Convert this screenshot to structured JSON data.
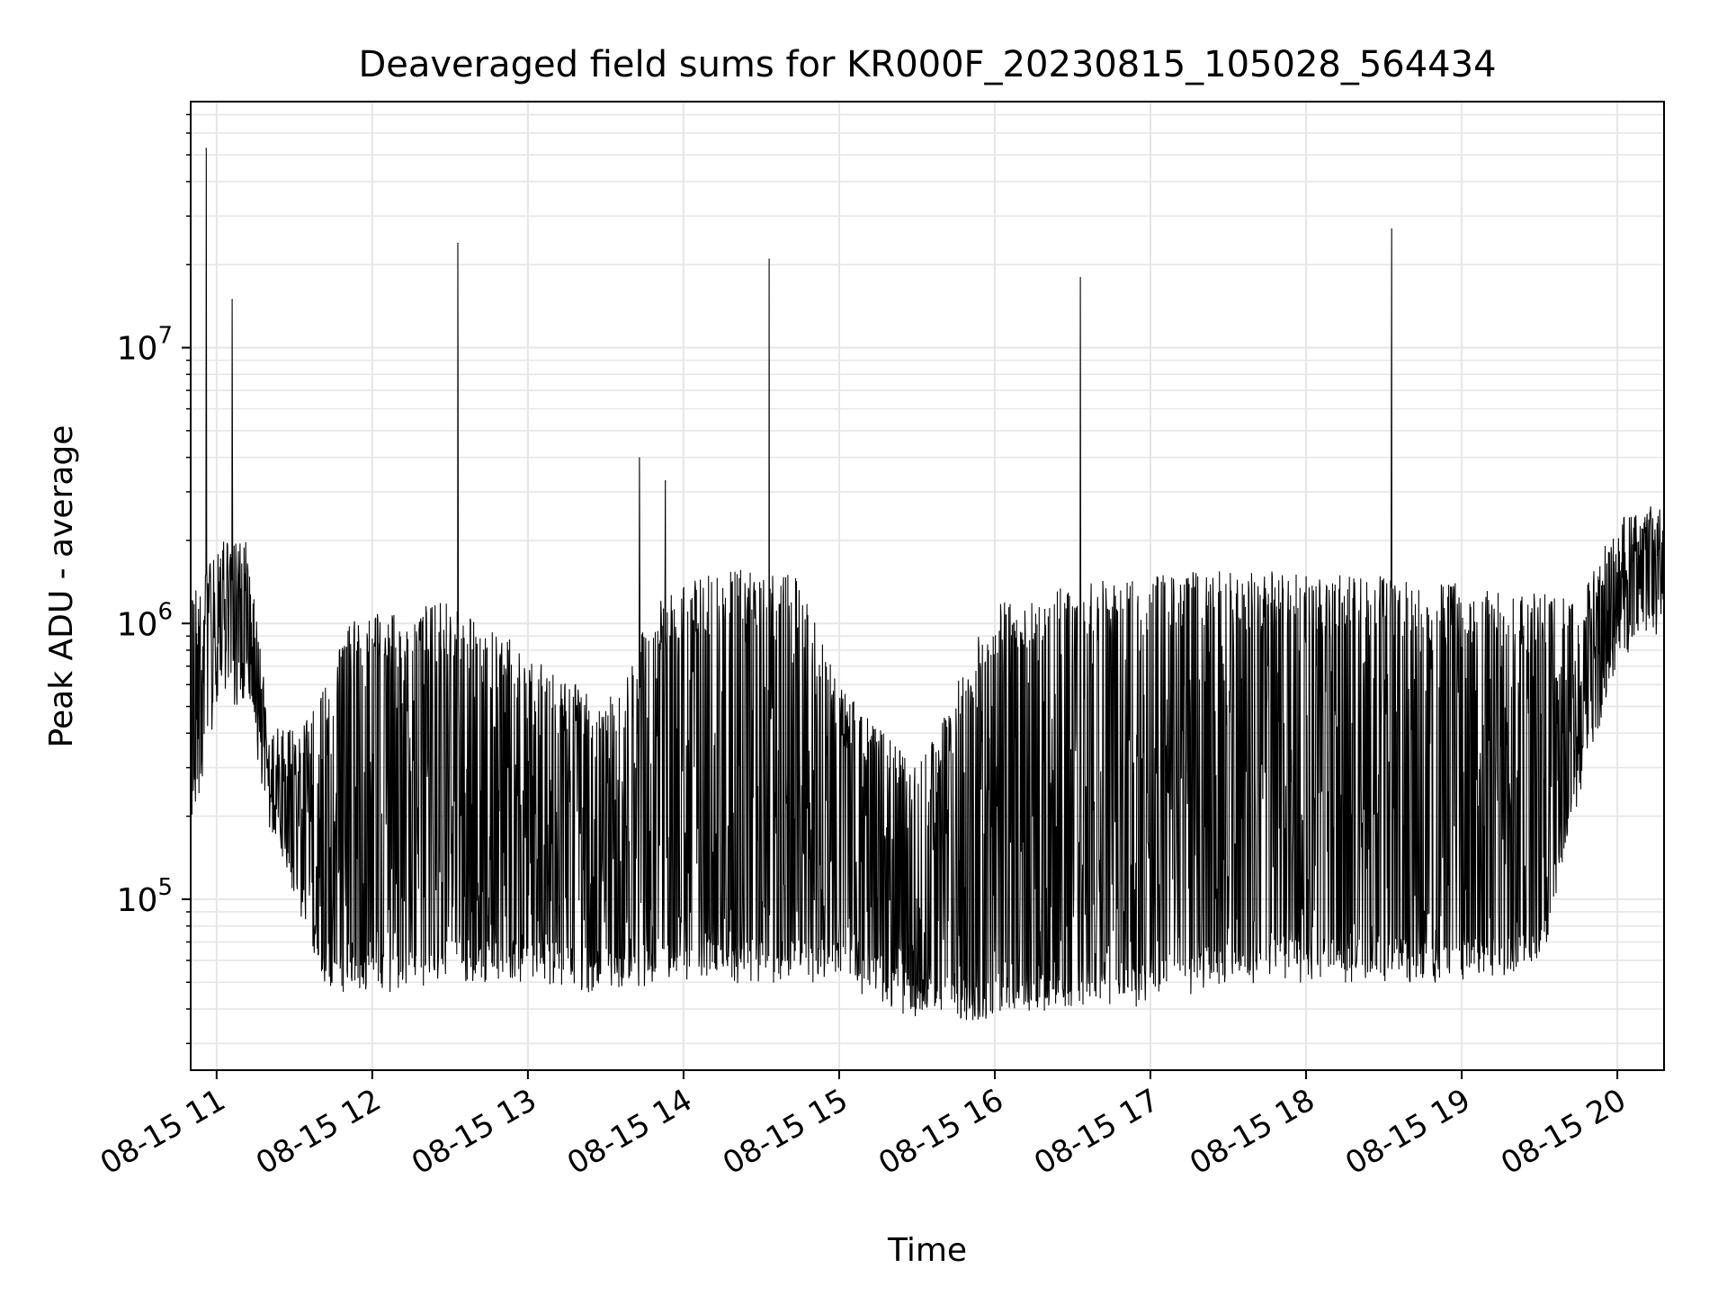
{
  "chart_data": {
    "type": "line",
    "title": "Deaveraged field sums for KR000F_20230815_105028_564434",
    "xlabel": "Time",
    "ylabel": "Peak ADU - average",
    "yscale": "log",
    "grid": true,
    "line_color": "#000000",
    "xlim": [
      "2023-08-15 10:50",
      "2023-08-15 20:18"
    ],
    "ylim": [
      24000,
      78000000
    ],
    "x_ticks": [
      {
        "t": "2023-08-15 11:00",
        "label": "08-15 11"
      },
      {
        "t": "2023-08-15 12:00",
        "label": "08-15 12"
      },
      {
        "t": "2023-08-15 13:00",
        "label": "08-15 13"
      },
      {
        "t": "2023-08-15 14:00",
        "label": "08-15 14"
      },
      {
        "t": "2023-08-15 15:00",
        "label": "08-15 15"
      },
      {
        "t": "2023-08-15 16:00",
        "label": "08-15 16"
      },
      {
        "t": "2023-08-15 17:00",
        "label": "08-15 17"
      },
      {
        "t": "2023-08-15 18:00",
        "label": "08-15 18"
      },
      {
        "t": "2023-08-15 19:00",
        "label": "08-15 19"
      },
      {
        "t": "2023-08-15 20:00",
        "label": "08-15 20"
      }
    ],
    "y_ticks": [
      {
        "value": 100000,
        "base": "10",
        "exp": "5"
      },
      {
        "value": 1000000,
        "base": "10",
        "exp": "6"
      },
      {
        "value": 10000000,
        "base": "10",
        "exp": "7"
      }
    ],
    "spikes": [
      {
        "t": "2023-08-15 10:56",
        "y": 53000000
      },
      {
        "t": "2023-08-15 11:06",
        "y": 15000000
      },
      {
        "t": "2023-08-15 12:33",
        "y": 24000000
      },
      {
        "t": "2023-08-15 13:43",
        "y": 4000000
      },
      {
        "t": "2023-08-15 13:53",
        "y": 3300000
      },
      {
        "t": "2023-08-15 14:33",
        "y": 21000000
      },
      {
        "t": "2023-08-15 16:33",
        "y": 18000000
      },
      {
        "t": "2023-08-15 18:33",
        "y": 27000000
      }
    ],
    "envelope": [
      {
        "t": "2023-08-15 10:50",
        "low": 200000,
        "mid": 500000,
        "high": 1200000
      },
      {
        "t": "2023-08-15 11:00",
        "low": 500000,
        "mid": 1000000,
        "high": 2000000
      },
      {
        "t": "2023-08-15 11:12",
        "low": 600000,
        "mid": 900000,
        "high": 2000000
      },
      {
        "t": "2023-08-15 11:20",
        "low": 200000,
        "mid": 300000,
        "high": 450000
      },
      {
        "t": "2023-08-15 11:32",
        "low": 100000,
        "mid": 170000,
        "high": 400000
      },
      {
        "t": "2023-08-15 11:42",
        "low": 50000,
        "mid": 80000,
        "high": 600000
      },
      {
        "t": "2023-08-15 11:50",
        "low": 48000,
        "mid": 90000,
        "high": 1000000
      },
      {
        "t": "2023-08-15 12:00",
        "low": 50000,
        "mid": 300000,
        "high": 1100000
      },
      {
        "t": "2023-08-15 12:30",
        "low": 55000,
        "mid": 300000,
        "high": 1200000
      },
      {
        "t": "2023-08-15 13:00",
        "low": 55000,
        "mid": 150000,
        "high": 800000
      },
      {
        "t": "2023-08-15 13:30",
        "low": 50000,
        "mid": 100000,
        "high": 500000
      },
      {
        "t": "2023-08-15 13:50",
        "low": 55000,
        "mid": 150000,
        "high": 1200000
      },
      {
        "t": "2023-08-15 14:10",
        "low": 55000,
        "mid": 500000,
        "high": 1600000
      },
      {
        "t": "2023-08-15 14:45",
        "low": 55000,
        "mid": 400000,
        "high": 1500000
      },
      {
        "t": "2023-08-15 15:00",
        "low": 55000,
        "mid": 100000,
        "high": 600000
      },
      {
        "t": "2023-08-15 15:30",
        "low": 40000,
        "mid": 60000,
        "high": 300000
      },
      {
        "t": "2023-08-15 16:00",
        "low": 40000,
        "mid": 60000,
        "high": 1200000
      },
      {
        "t": "2023-08-15 16:30",
        "low": 45000,
        "mid": 80000,
        "high": 1400000
      },
      {
        "t": "2023-08-15 17:00",
        "low": 45000,
        "mid": 150000,
        "high": 1500000
      },
      {
        "t": "2023-08-15 17:30",
        "low": 55000,
        "mid": 400000,
        "high": 1600000
      },
      {
        "t": "2023-08-15 18:00",
        "low": 55000,
        "mid": 500000,
        "high": 1500000
      },
      {
        "t": "2023-08-15 18:30",
        "low": 55000,
        "mid": 500000,
        "high": 1500000
      },
      {
        "t": "2023-08-15 19:00",
        "low": 55000,
        "mid": 450000,
        "high": 1400000
      },
      {
        "t": "2023-08-15 19:30",
        "low": 60000,
        "mid": 500000,
        "high": 1300000
      },
      {
        "t": "2023-08-15 19:45",
        "low": 250000,
        "mid": 600000,
        "high": 1200000
      },
      {
        "t": "2023-08-15 20:00",
        "low": 800000,
        "mid": 1200000,
        "high": 2500000
      },
      {
        "t": "2023-08-15 20:18",
        "low": 1000000,
        "mid": 1500000,
        "high": 2800000
      }
    ]
  }
}
